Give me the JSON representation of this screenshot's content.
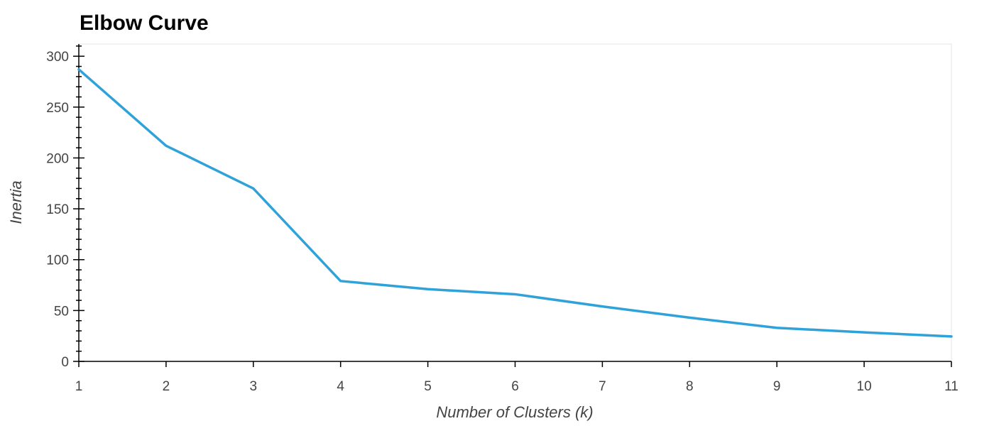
{
  "chart_data": {
    "type": "line",
    "title": "Elbow Curve",
    "xlabel": "Number of Clusters (k)",
    "ylabel": "Inertia",
    "x": [
      1,
      2,
      3,
      4,
      5,
      6,
      7,
      8,
      9,
      10,
      11
    ],
    "series": [
      {
        "values": [
          287,
          212,
          170,
          79,
          71,
          66,
          54,
          43,
          33,
          28.5,
          24.5
        ],
        "color": "#30a2da"
      }
    ],
    "xlim": [
      1,
      11
    ],
    "ylim": [
      0,
      312
    ],
    "x_ticks": [
      1,
      2,
      3,
      4,
      5,
      6,
      7,
      8,
      9,
      10,
      11
    ],
    "y_ticks": [
      0,
      50,
      100,
      150,
      200,
      250,
      300
    ],
    "y_minor_step": 10,
    "grid": false,
    "legend": "none"
  }
}
